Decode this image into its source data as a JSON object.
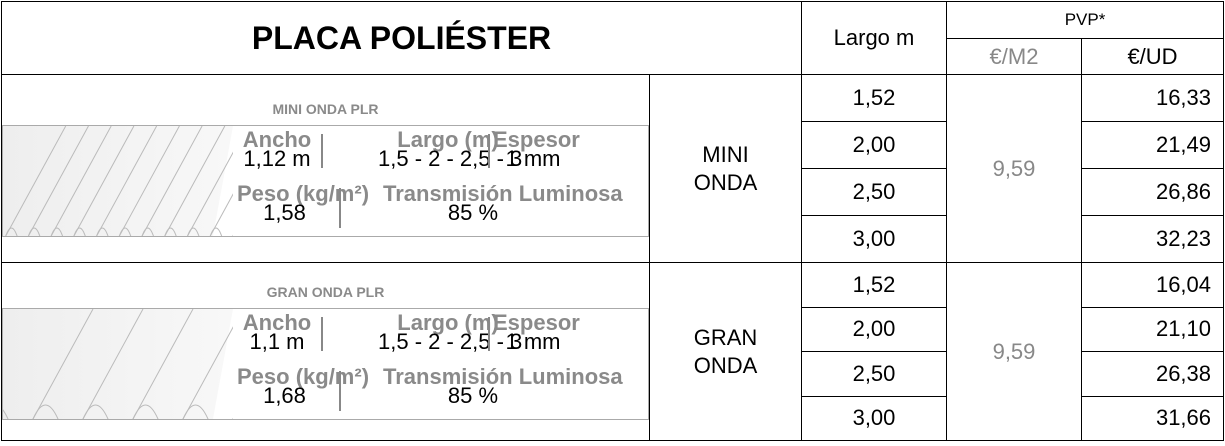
{
  "header": {
    "title": "PLACA POLIÉSTER",
    "largo": "Largo m",
    "pvp": "PVP*",
    "per_m2": "€/M2",
    "per_ud": "€/UD"
  },
  "products": [
    {
      "card": {
        "title": "MINI ONDA PLR",
        "specs": [
          [
            {
              "label": "Ancho",
              "value": "1,12 m"
            },
            {
              "label": "Largo (m)",
              "value": "1,5 - 2 - 2,5 - 3"
            },
            {
              "label": "Espesor",
              "value": "1 mm"
            }
          ],
          [
            {
              "label": "Peso (kg/m²)",
              "value": "1,58"
            },
            {
              "label": "Transmisión Luminosa",
              "value": "85 %"
            }
          ]
        ]
      },
      "name": "MINI ONDA",
      "price_m2": "9,59",
      "rows": [
        [
          "1,52",
          "16,33"
        ],
        [
          "2,00",
          "21,49"
        ],
        [
          "2,50",
          "26,86"
        ],
        [
          "3,00",
          "32,23"
        ]
      ]
    },
    {
      "card": {
        "title": "GRAN ONDA PLR",
        "specs": [
          [
            {
              "label": "Ancho",
              "value": "1,1 m"
            },
            {
              "label": "Largo (m)",
              "value": "1,5 - 2 - 2,5 - 3"
            },
            {
              "label": "Espesor",
              "value": "1 mm"
            }
          ],
          [
            {
              "label": "Peso (kg/m²)",
              "value": "1,68"
            },
            {
              "label": "Transmisión Luminosa",
              "value": "85 %"
            }
          ]
        ]
      },
      "name": "GRAN ONDA",
      "price_m2": "9,59",
      "rows": [
        [
          "1,52",
          "16,04"
        ],
        [
          "2,00",
          "21,10"
        ],
        [
          "2,50",
          "26,38"
        ],
        [
          "3,00",
          "31,66"
        ]
      ]
    }
  ]
}
